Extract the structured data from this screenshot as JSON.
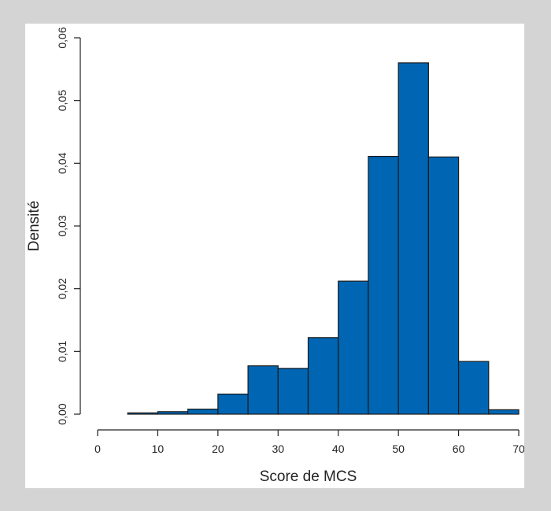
{
  "chart_data": {
    "type": "bar",
    "bins": [
      {
        "x0": 0,
        "x1": 5,
        "density": 0.0
      },
      {
        "x0": 5,
        "x1": 10,
        "density": 0.0002
      },
      {
        "x0": 10,
        "x1": 15,
        "density": 0.0004
      },
      {
        "x0": 15,
        "x1": 20,
        "density": 0.0008
      },
      {
        "x0": 20,
        "x1": 25,
        "density": 0.0032
      },
      {
        "x0": 25,
        "x1": 30,
        "density": 0.0077
      },
      {
        "x0": 30,
        "x1": 35,
        "density": 0.0073
      },
      {
        "x0": 35,
        "x1": 40,
        "density": 0.0122
      },
      {
        "x0": 40,
        "x1": 45,
        "density": 0.0212
      },
      {
        "x0": 45,
        "x1": 50,
        "density": 0.0411
      },
      {
        "x0": 50,
        "x1": 55,
        "density": 0.056
      },
      {
        "x0": 55,
        "x1": 60,
        "density": 0.041
      },
      {
        "x0": 60,
        "x1": 65,
        "density": 0.0084
      },
      {
        "x0": 65,
        "x1": 70,
        "density": 0.0007
      }
    ],
    "xlabel": "Score de MCS",
    "ylabel": "Densité",
    "xlim": [
      0,
      70
    ],
    "ylim": [
      0,
      0.06
    ],
    "x_ticks": [
      0,
      10,
      20,
      30,
      40,
      50,
      60,
      70
    ],
    "x_tick_labels": [
      "0",
      "10",
      "20",
      "30",
      "40",
      "50",
      "60",
      "70"
    ],
    "y_ticks": [
      0,
      0.01,
      0.02,
      0.03,
      0.04,
      0.05,
      0.06
    ],
    "y_tick_labels": [
      "0,00",
      "0,01",
      "0,02",
      "0,03",
      "0,04",
      "0,05",
      "0,06"
    ],
    "grid": false,
    "bar_color": "#0066b3",
    "edge_color": "#1a1a1a"
  }
}
